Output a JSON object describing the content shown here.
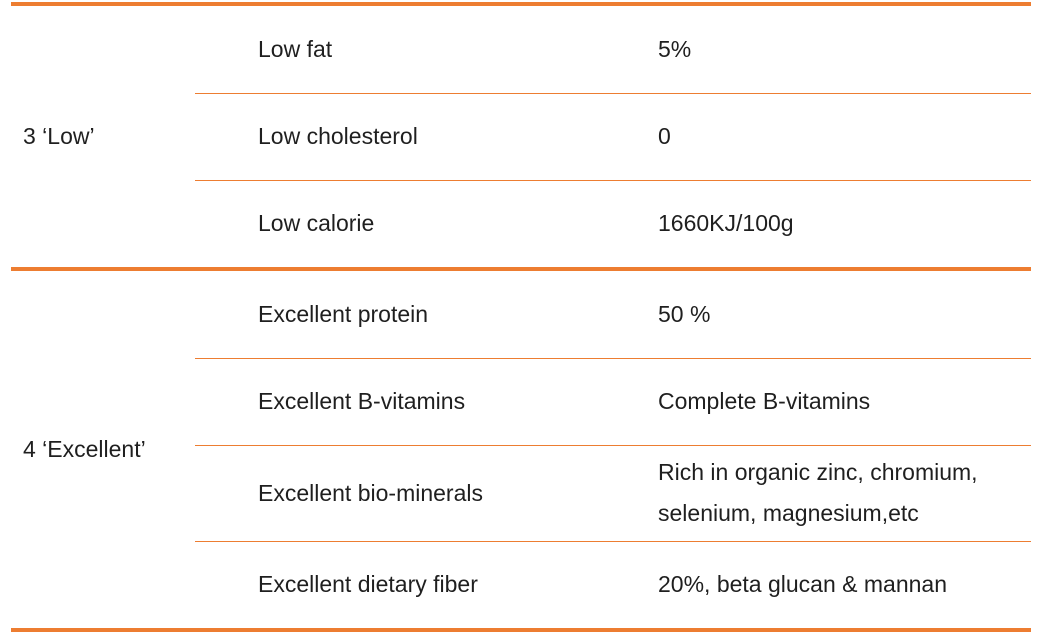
{
  "table": {
    "accent_color": "#ED7D31",
    "text_color": "#1f1f1f",
    "groups": [
      {
        "label": "3 ‘Low’",
        "rows": [
          {
            "name": "Low fat",
            "value": "5%"
          },
          {
            "name": "Low cholesterol",
            "value": "0"
          },
          {
            "name": "Low calorie",
            "value": "1660KJ/100g"
          }
        ]
      },
      {
        "label": "4 ‘Excellent’",
        "rows": [
          {
            "name": "Excellent protein",
            "value": "50 %"
          },
          {
            "name": "Excellent B-vitamins",
            "value": "Complete B-vitamins"
          },
          {
            "name": "Excellent bio-minerals",
            "value": "Rich in organic zinc, chromium, selenium, magnesium,etc"
          },
          {
            "name": "Excellent dietary fiber",
            "value": "20%, beta glucan & mannan"
          }
        ]
      }
    ]
  }
}
